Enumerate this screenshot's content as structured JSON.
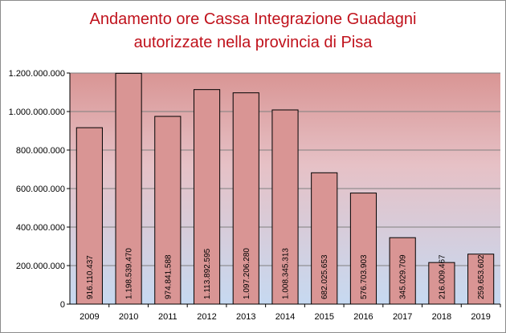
{
  "chart_data": {
    "type": "bar",
    "title_lines": [
      "Andamento ore Cassa Integrazione Guadagni",
      "autorizzate nella provincia di Pisa"
    ],
    "categories": [
      "2009",
      "2010",
      "2011",
      "2012",
      "2013",
      "2014",
      "2015",
      "2016",
      "2017",
      "2018",
      "2019"
    ],
    "values": [
      916110437,
      1198539470,
      974841588,
      1113892595,
      1097206280,
      1008345313,
      682025653,
      576703903,
      345029709,
      216009467,
      259653602
    ],
    "value_labels": [
      "916.110.437",
      "1.198.539.470",
      "974.841.588",
      "1.113.892.595",
      "1.097.206.280",
      "1.008.345.313",
      "682.025.653",
      "576.703.903",
      "345.029.709",
      "216.009.467",
      "259.653.602"
    ],
    "y_ticks": [
      0,
      200000000,
      400000000,
      600000000,
      800000000,
      1000000000,
      1200000000
    ],
    "y_tick_labels": [
      "0",
      "200.000.000",
      "400.000.000",
      "600.000.000",
      "800.000.000",
      "1.000.000.000",
      "1.200.000.000"
    ],
    "ylim": [
      0,
      1200000000
    ],
    "xlabel": "",
    "ylabel": "",
    "grid": "horizontal",
    "legend": "none",
    "colors": {
      "bar_fill": "#d99594",
      "bar_stroke": "#000000",
      "title": "#c0121c",
      "plot_bg_top": "#d99594",
      "plot_bg_bottom": "#c6d9f1",
      "grid": "#808080"
    }
  }
}
